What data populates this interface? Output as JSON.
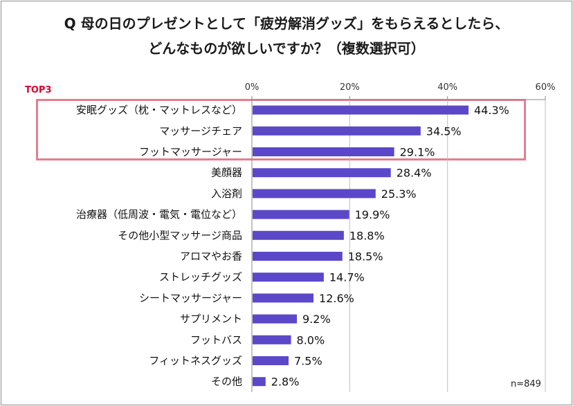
{
  "title_lines": [
    "Q 母の日のプレゼントとして「疲労解消グッズ」をもらえるとしたら、",
    "どんなものが欲しいですか？（複数選択可）"
  ],
  "top3_label": "TOP3",
  "note": "n=849",
  "colors": {
    "bar": "#5b48c8",
    "highlight_box": "#e87c8d",
    "top3_text": "#e0002a"
  },
  "chart_data": {
    "type": "bar",
    "orientation": "horizontal",
    "categories": [
      "安眠グッズ（枕・マットレスなど）",
      "マッサージチェア",
      "フットマッサージャー",
      "美顔器",
      "入浴剤",
      "治療器（低周波・電気・電位など）",
      "その他小型マッサージ商品",
      "アロマやお香",
      "ストレッチグッズ",
      "シートマッサージャー",
      "サプリメント",
      "フットバス",
      "フィットネスグッズ",
      "その他"
    ],
    "values": [
      44.3,
      34.5,
      29.1,
      28.4,
      25.3,
      19.9,
      18.8,
      18.5,
      14.7,
      12.6,
      9.2,
      8.0,
      7.5,
      2.8
    ],
    "value_labels": [
      "44.3%",
      "34.5%",
      "29.1%",
      "28.4%",
      "25.3%",
      "19.9%",
      "18.8%",
      "18.5%",
      "14.7%",
      "12.6%",
      "9.2%",
      "8.0%",
      "7.5%",
      "2.8%"
    ],
    "xlim": [
      0,
      60
    ],
    "xticks": [
      0,
      20,
      40,
      60
    ],
    "xtick_labels": [
      "0%",
      "20%",
      "40%",
      "60%"
    ],
    "axis_position": "top",
    "grid": true
  }
}
